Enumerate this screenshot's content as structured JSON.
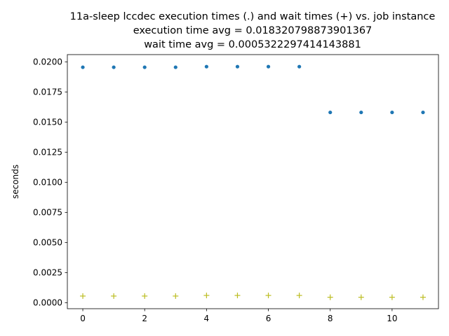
{
  "chart_data": {
    "type": "scatter",
    "title_lines": [
      "11a-sleep lccdec execution times (.) and wait times (+) vs. job instance",
      "execution time avg = 0.018320798873901367",
      "wait time avg = 0.0005322297414143881"
    ],
    "xlabel": "",
    "ylabel": "seconds",
    "xlim": [
      -0.5,
      11.5
    ],
    "ylim": [
      -0.0005,
      0.0206
    ],
    "xticks": [
      0,
      2,
      4,
      6,
      8,
      10
    ],
    "xtick_labels": [
      "0",
      "2",
      "4",
      "6",
      "8",
      "10"
    ],
    "yticks": [
      0.0,
      0.0025,
      0.005,
      0.0075,
      0.01,
      0.0125,
      0.015,
      0.0175,
      0.02
    ],
    "ytick_labels": [
      "0.0000",
      "0.0025",
      "0.0050",
      "0.0075",
      "0.0100",
      "0.0125",
      "0.0150",
      "0.0175",
      "0.0200"
    ],
    "grid": false,
    "series": [
      {
        "marker": "dot",
        "color": "#1f77b4",
        "x": [
          0,
          1,
          2,
          3,
          4,
          5,
          6,
          7,
          8,
          9,
          10,
          11
        ],
        "y": [
          0.01955,
          0.01955,
          0.01955,
          0.01955,
          0.0196,
          0.0196,
          0.0196,
          0.0196,
          0.0158,
          0.0158,
          0.0158,
          0.0158
        ]
      },
      {
        "marker": "plus",
        "color": "#bcbd22",
        "x": [
          0,
          1,
          2,
          3,
          4,
          5,
          6,
          7,
          8,
          9,
          10,
          11
        ],
        "y": [
          0.00055,
          0.00055,
          0.00055,
          0.00055,
          0.0006,
          0.0006,
          0.0006,
          0.0006,
          0.00045,
          0.00045,
          0.00045,
          0.00045
        ]
      }
    ]
  }
}
